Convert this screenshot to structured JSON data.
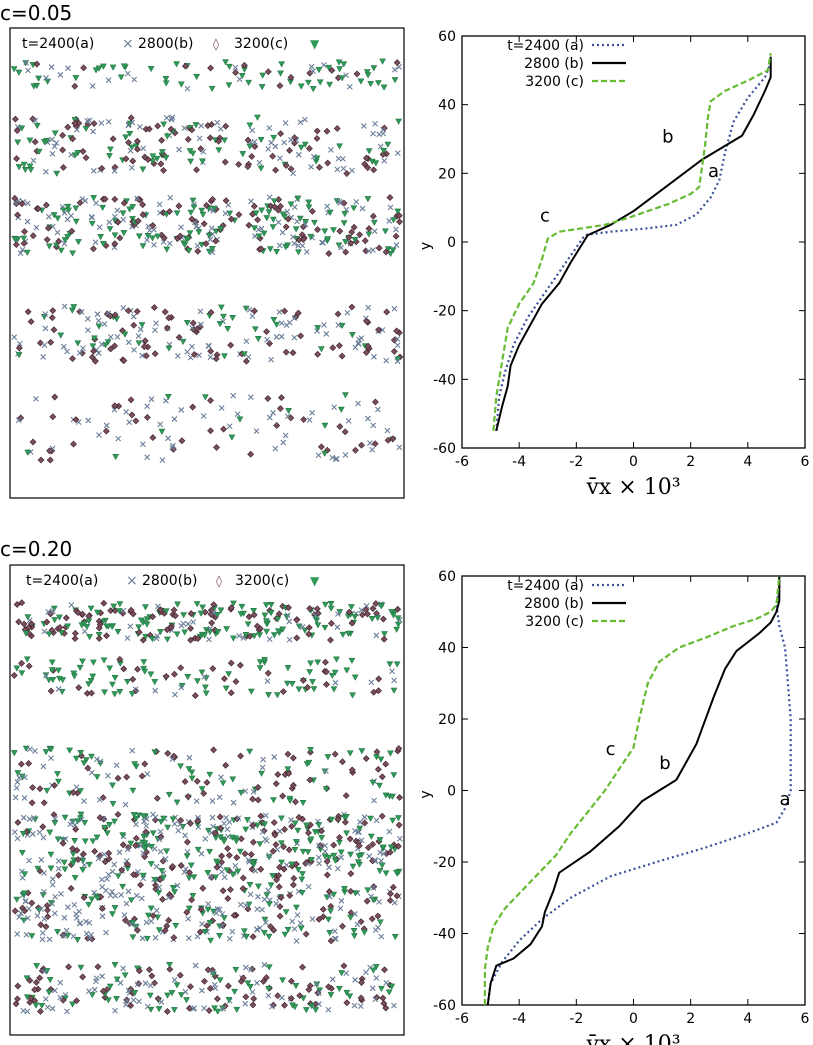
{
  "colors": {
    "a": "#6a7e98",
    "b": "#000000",
    "c": "#2f9a58",
    "b_marker": "#7a4e5a",
    "c_line": "#66bb33",
    "a_line": "#3a4e9a"
  },
  "panels": [
    {
      "label": "c=0.05",
      "legend": {
        "a": "t=2400(a)",
        "b": "2800(b)",
        "c": "3200(c)"
      }
    },
    {
      "label": "c=0.20",
      "legend": {
        "a": "t=2400(a)",
        "b": "2800(b)",
        "c": "3200(c)"
      }
    }
  ],
  "chart_data": [
    {
      "type": "line",
      "panel": "c=0.05",
      "xlabel": "v̄x × 10³",
      "ylabel": "y",
      "xlim": [
        -6,
        6
      ],
      "ylim": [
        -60,
        60
      ],
      "xticks": [
        -6,
        -4,
        -2,
        0,
        2,
        4,
        6
      ],
      "yticks": [
        -60,
        -40,
        -20,
        0,
        20,
        40,
        60
      ],
      "legend_position": "top-left",
      "series": [
        {
          "name": "t=2400 (a)",
          "key": "a",
          "style": "dotted",
          "annot": {
            "text": "a",
            "x": 2.8,
            "y": 19
          },
          "points": [
            [
              -4.8,
              -55
            ],
            [
              -4.7,
              -45
            ],
            [
              -4.5,
              -38
            ],
            [
              -4.2,
              -30
            ],
            [
              -3.7,
              -22
            ],
            [
              -3.2,
              -16
            ],
            [
              -2.7,
              -10
            ],
            [
              -2.2,
              -4
            ],
            [
              -1.7,
              2
            ],
            [
              -0.8,
              3
            ],
            [
              0.5,
              4
            ],
            [
              1.5,
              5
            ],
            [
              2.2,
              8
            ],
            [
              2.7,
              13
            ],
            [
              3.0,
              18
            ],
            [
              3.2,
              26
            ],
            [
              3.5,
              35
            ],
            [
              4.0,
              42
            ],
            [
              4.6,
              48
            ],
            [
              4.8,
              52
            ]
          ]
        },
        {
          "name": "2800 (b)",
          "key": "b",
          "style": "solid",
          "annot": {
            "text": "b",
            "x": 1.2,
            "y": 29
          },
          "points": [
            [
              -4.8,
              -55
            ],
            [
              -4.6,
              -48
            ],
            [
              -4.4,
              -42
            ],
            [
              -4.3,
              -36
            ],
            [
              -4.0,
              -30
            ],
            [
              -3.6,
              -24
            ],
            [
              -3.2,
              -18
            ],
            [
              -2.6,
              -12
            ],
            [
              -2.2,
              -6
            ],
            [
              -1.9,
              -2
            ],
            [
              -1.6,
              2
            ],
            [
              -0.8,
              5
            ],
            [
              0.0,
              9
            ],
            [
              0.8,
              14
            ],
            [
              1.6,
              19
            ],
            [
              2.4,
              24
            ],
            [
              3.2,
              28
            ],
            [
              3.8,
              31
            ],
            [
              4.2,
              37
            ],
            [
              4.6,
              44
            ],
            [
              4.8,
              48
            ],
            [
              4.8,
              54
            ]
          ]
        },
        {
          "name": "3200 (c)",
          "key": "c",
          "style": "dashed",
          "annot": {
            "text": "c",
            "x": -3.1,
            "y": 6
          },
          "points": [
            [
              -4.9,
              -55
            ],
            [
              -4.8,
              -45
            ],
            [
              -4.6,
              -35
            ],
            [
              -4.4,
              -25
            ],
            [
              -4.0,
              -18
            ],
            [
              -3.5,
              -12
            ],
            [
              -3.2,
              -5
            ],
            [
              -3.0,
              1
            ],
            [
              -2.6,
              3
            ],
            [
              -1.8,
              4
            ],
            [
              -1.0,
              5
            ],
            [
              -0.2,
              7
            ],
            [
              0.5,
              9
            ],
            [
              1.2,
              11
            ],
            [
              2.0,
              14
            ],
            [
              2.3,
              16
            ],
            [
              2.4,
              22
            ],
            [
              2.5,
              28
            ],
            [
              2.6,
              36
            ],
            [
              2.7,
              41
            ],
            [
              3.2,
              44
            ],
            [
              4.0,
              47
            ],
            [
              4.7,
              50
            ],
            [
              4.8,
              55
            ]
          ]
        }
      ]
    },
    {
      "type": "line",
      "panel": "c=0.20",
      "xlabel": "v̄x × 10³",
      "ylabel": "y",
      "xlim": [
        -6,
        6
      ],
      "ylim": [
        -60,
        60
      ],
      "xticks": [
        -6,
        -4,
        -2,
        0,
        2,
        4,
        6
      ],
      "yticks": [
        -60,
        -40,
        -20,
        0,
        20,
        40,
        60
      ],
      "legend_position": "top-left",
      "series": [
        {
          "name": "t=2400 (a)",
          "key": "a",
          "style": "dotted",
          "annot": {
            "text": "a",
            "x": 5.3,
            "y": -4
          },
          "points": [
            [
              -5.1,
              -60
            ],
            [
              -5.0,
              -54
            ],
            [
              -4.6,
              -48
            ],
            [
              -4.0,
              -42
            ],
            [
              -3.2,
              -36
            ],
            [
              -2.2,
              -30
            ],
            [
              -0.8,
              -24
            ],
            [
              0.8,
              -20
            ],
            [
              2.5,
              -16
            ],
            [
              4.0,
              -12
            ],
            [
              5.0,
              -9
            ],
            [
              5.3,
              -5
            ],
            [
              5.5,
              0
            ],
            [
              5.5,
              10
            ],
            [
              5.5,
              20
            ],
            [
              5.4,
              30
            ],
            [
              5.3,
              40
            ],
            [
              5.1,
              46
            ],
            [
              5.0,
              52
            ],
            [
              5.1,
              56
            ],
            [
              5.1,
              60
            ]
          ]
        },
        {
          "name": "2800 (b)",
          "key": "b",
          "style": "solid",
          "annot": {
            "text": "b",
            "x": 1.1,
            "y": 6
          },
          "points": [
            [
              -5.1,
              -60
            ],
            [
              -5.0,
              -54
            ],
            [
              -4.8,
              -49
            ],
            [
              -4.2,
              -47
            ],
            [
              -3.6,
              -43
            ],
            [
              -3.2,
              -38
            ],
            [
              -3.1,
              -34
            ],
            [
              -2.8,
              -28
            ],
            [
              -2.6,
              -23
            ],
            [
              -1.5,
              -17
            ],
            [
              -0.5,
              -10
            ],
            [
              0.3,
              -3
            ],
            [
              0.9,
              0
            ],
            [
              1.5,
              3
            ],
            [
              2.2,
              13
            ],
            [
              2.8,
              26
            ],
            [
              3.2,
              34
            ],
            [
              3.6,
              39
            ],
            [
              4.4,
              44
            ],
            [
              4.8,
              47
            ],
            [
              5.0,
              50
            ],
            [
              5.1,
              53
            ],
            [
              5.1,
              60
            ]
          ]
        },
        {
          "name": "3200 (c)",
          "key": "c",
          "style": "dashed",
          "annot": {
            "text": "c",
            "x": -0.8,
            "y": 10
          },
          "points": [
            [
              -5.2,
              -60
            ],
            [
              -5.2,
              -50
            ],
            [
              -5.1,
              -44
            ],
            [
              -4.9,
              -38
            ],
            [
              -4.5,
              -33
            ],
            [
              -3.9,
              -28
            ],
            [
              -3.3,
              -23
            ],
            [
              -2.7,
              -18
            ],
            [
              -2.2,
              -12
            ],
            [
              -1.6,
              -6
            ],
            [
              -1.0,
              0
            ],
            [
              -0.5,
              6
            ],
            [
              0.0,
              12
            ],
            [
              0.2,
              20
            ],
            [
              0.5,
              30
            ],
            [
              0.9,
              36
            ],
            [
              1.6,
              40
            ],
            [
              2.6,
              43
            ],
            [
              3.5,
              46
            ],
            [
              4.3,
              48
            ],
            [
              4.8,
              50
            ],
            [
              5.0,
              52
            ],
            [
              5.1,
              60
            ]
          ]
        }
      ]
    }
  ]
}
